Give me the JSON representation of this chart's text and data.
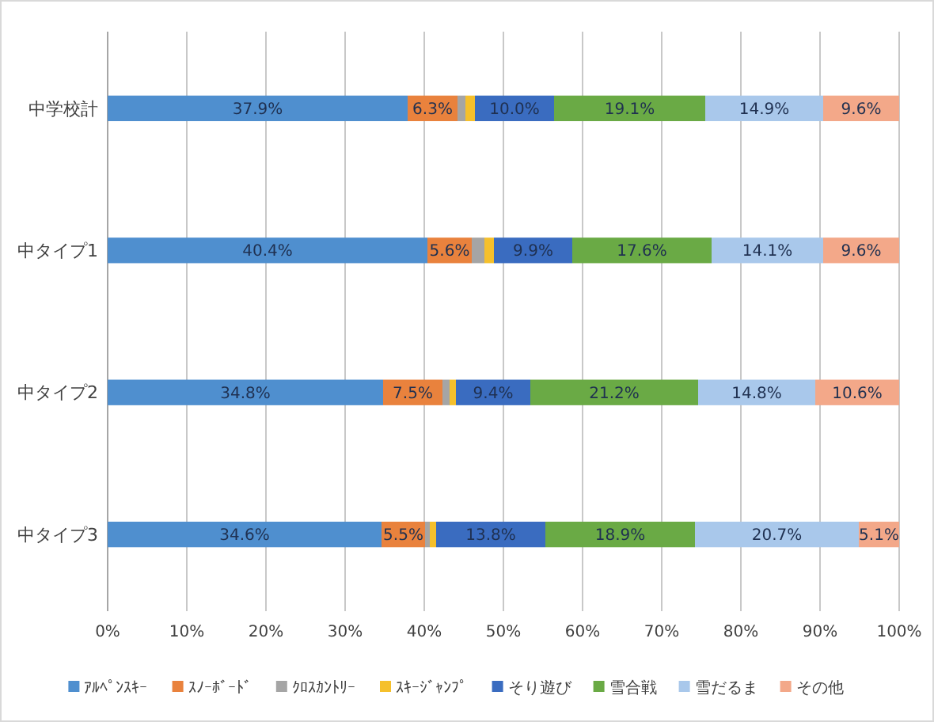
{
  "chart_data": {
    "type": "bar",
    "orientation": "horizontal",
    "stacked": true,
    "categories": [
      "中学校計",
      "中タイプ1",
      "中タイプ2",
      "中タイプ3"
    ],
    "series": [
      {
        "name": "ｱﾙﾍﾟﾝｽｷｰ",
        "color": "#4f8fcf",
        "values": [
          37.9,
          40.4,
          34.8,
          34.6
        ],
        "value_labels": [
          "37.9%",
          "40.4%",
          "34.8%",
          "34.6%"
        ]
      },
      {
        "name": "ｽﾉｰﾎﾞｰﾄﾞ",
        "color": "#e9823d",
        "values": [
          6.3,
          5.6,
          7.5,
          5.5
        ],
        "value_labels": [
          "6.3%",
          "5.6%",
          "7.5%",
          "5.5%"
        ]
      },
      {
        "name": "ｸﾛｽｶﾝﾄﾘｰ",
        "color": "#a5a5a5",
        "values": [
          1.0,
          1.6,
          0.9,
          0.6
        ],
        "value_labels": [
          null,
          null,
          null,
          null
        ]
      },
      {
        "name": "ｽｷｰｼﾞｬﾝﾌﾟ",
        "color": "#f5c02c",
        "values": [
          1.2,
          1.2,
          0.8,
          0.8
        ],
        "value_labels": [
          null,
          null,
          null,
          null
        ]
      },
      {
        "name": "そり遊び",
        "color": "#3a6cc0",
        "values": [
          10.0,
          9.9,
          9.4,
          13.8
        ],
        "value_labels": [
          "10.0%",
          "9.9%",
          "9.4%",
          "13.8%"
        ]
      },
      {
        "name": "雪合戦",
        "color": "#6aaa45",
        "values": [
          19.1,
          17.6,
          21.2,
          18.9
        ],
        "value_labels": [
          "19.1%",
          "17.6%",
          "21.2%",
          "18.9%"
        ]
      },
      {
        "name": "雪だるま",
        "color": "#a9c8eb",
        "values": [
          14.9,
          14.1,
          14.8,
          20.7
        ],
        "value_labels": [
          "14.9%",
          "14.1%",
          "14.8%",
          "20.7%"
        ]
      },
      {
        "name": "その他",
        "color": "#f3a889",
        "values": [
          9.6,
          9.6,
          10.6,
          5.1
        ],
        "value_labels": [
          "9.6%",
          "9.6%",
          "10.6%",
          "5.1%"
        ]
      }
    ],
    "xlim": [
      0,
      100
    ],
    "xticks": [
      {
        "value": 0,
        "label": "0%"
      },
      {
        "value": 10,
        "label": "10%"
      },
      {
        "value": 20,
        "label": "20%"
      },
      {
        "value": 30,
        "label": "30%"
      },
      {
        "value": 40,
        "label": "40%"
      },
      {
        "value": 50,
        "label": "50%"
      },
      {
        "value": 60,
        "label": "60%"
      },
      {
        "value": 70,
        "label": "70%"
      },
      {
        "value": 80,
        "label": "80%"
      },
      {
        "value": 90,
        "label": "90%"
      },
      {
        "value": 100,
        "label": "100%"
      }
    ],
    "grid": "x",
    "legend": "bottom"
  }
}
